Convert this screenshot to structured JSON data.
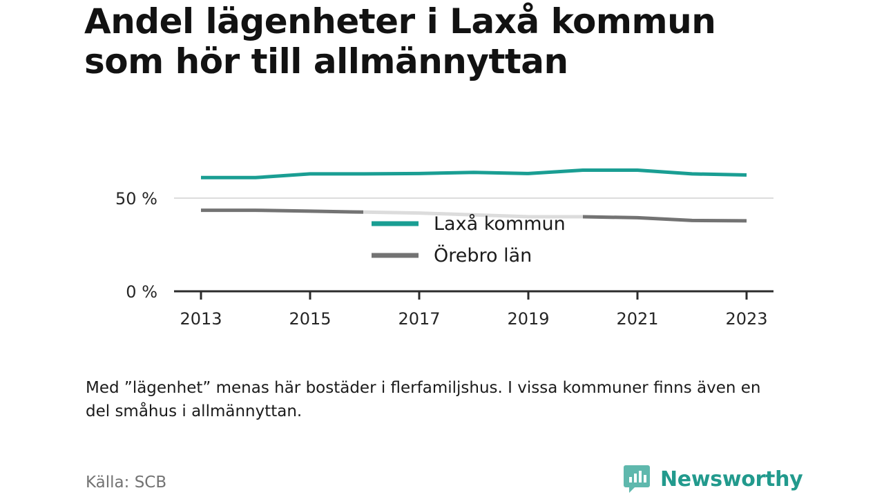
{
  "title_lines": [
    "Andel lägenheter i Laxå kommun",
    "som hör till allmännyttan"
  ],
  "note": "Med ”lägenhet” menas här bostäder i flerfamiljshus. I vissa kommuner finns även en del småhus i allmännyttan.",
  "source": "Källa: SCB",
  "brand": {
    "name": "Newsworthy",
    "color": "#229a8d"
  },
  "chart_data": {
    "type": "line",
    "title": "Andel lägenheter i Laxå kommun som hör till allmännyttan",
    "xlabel": "",
    "ylabel": "",
    "x": [
      2013,
      2014,
      2015,
      2016,
      2017,
      2018,
      2019,
      2020,
      2021,
      2022,
      2023
    ],
    "x_tick_labels": [
      "2013",
      "2015",
      "2017",
      "2019",
      "2021",
      "2023"
    ],
    "x_tick_values": [
      2013,
      2015,
      2017,
      2019,
      2021,
      2023
    ],
    "y_tick_labels": [
      "0 %",
      "50 %"
    ],
    "y_tick_values": [
      0,
      50
    ],
    "ylim": [
      0,
      100
    ],
    "grid": true,
    "legend_position": "center, overlapping lower series",
    "series": [
      {
        "name": "Laxå kommun",
        "color": "#1a9e93",
        "values": [
          61,
          61,
          63,
          63,
          63.2,
          63.8,
          63.2,
          65,
          65,
          63,
          62.4
        ]
      },
      {
        "name": "Örebro län",
        "color": "#737373",
        "values": [
          43.5,
          43.5,
          43,
          42.5,
          42,
          41,
          40,
          40,
          39.5,
          38,
          37.8
        ]
      }
    ]
  }
}
